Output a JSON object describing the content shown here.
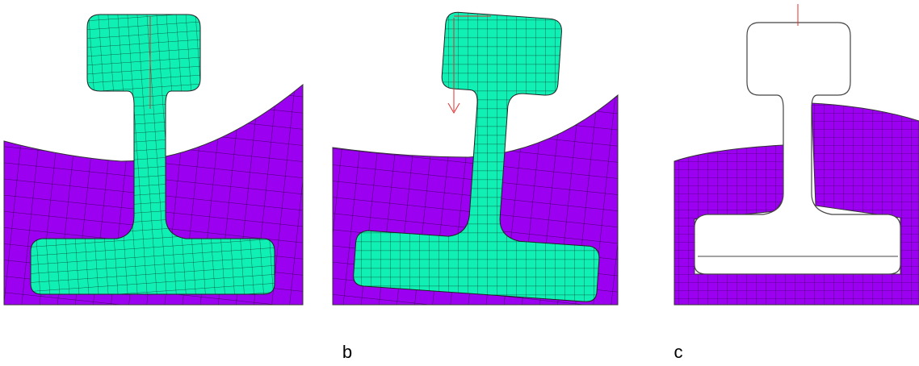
{
  "figure": {
    "labels": [
      "b",
      "c"
    ]
  }
}
